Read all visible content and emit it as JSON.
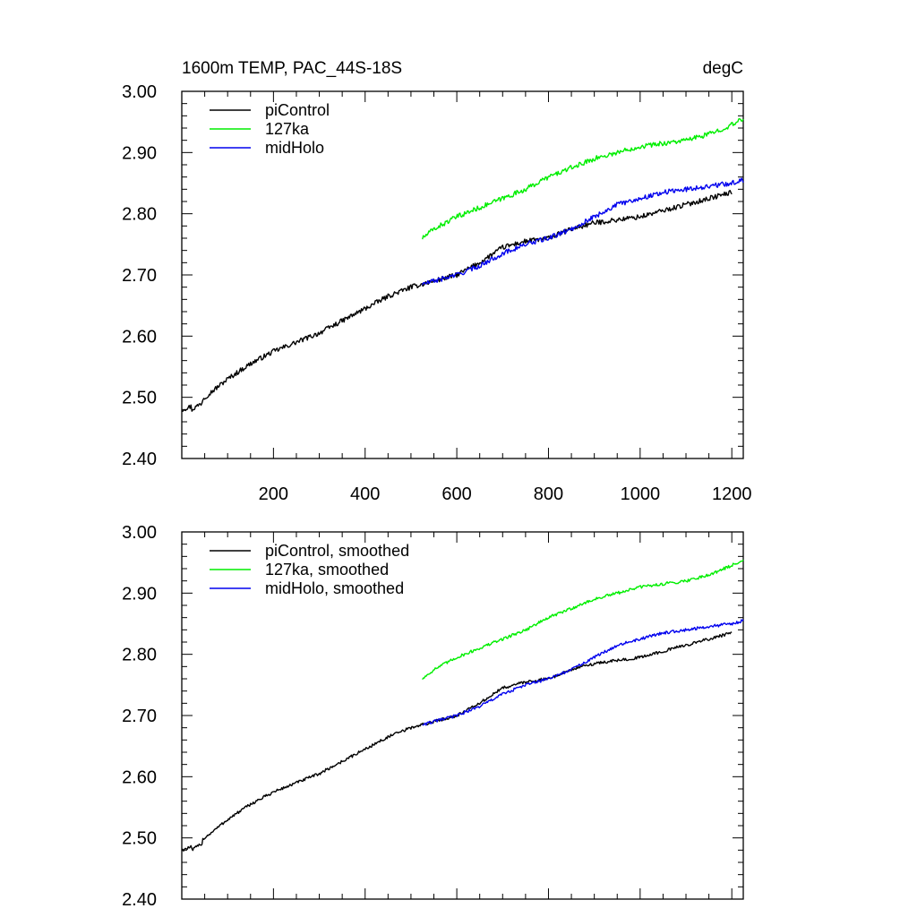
{
  "chart_data": [
    {
      "type": "line",
      "panel": "top",
      "title": "1600m TEMP, PAC_44S-18S",
      "units": "degC",
      "xlabel": "",
      "ylabel": "",
      "xlim": [
        0,
        1225
      ],
      "ylim": [
        2.4,
        3.0
      ],
      "xticks": [
        200,
        400,
        600,
        800,
        1000,
        1200
      ],
      "xtick_labels": [
        "200",
        "400",
        "600",
        "800",
        "1000",
        "1200"
      ],
      "yticks": [
        2.4,
        2.5,
        2.6,
        2.7,
        2.8,
        2.9,
        3.0
      ],
      "ytick_labels": [
        "2.40",
        "2.50",
        "2.60",
        "2.70",
        "2.80",
        "2.90",
        "3.00"
      ],
      "legend_position": "top-left",
      "series": [
        {
          "name": "piControl",
          "color": "#000000",
          "x": [
            0,
            20,
            50,
            100,
            150,
            200,
            250,
            300,
            350,
            400,
            450,
            500,
            550,
            600,
            650,
            700,
            750,
            800,
            850,
            900,
            950,
            1000,
            1050,
            1100,
            1150,
            1200
          ],
          "y": [
            2.48,
            2.485,
            2.5,
            2.53,
            2.555,
            2.575,
            2.59,
            2.605,
            2.625,
            2.645,
            2.665,
            2.68,
            2.69,
            2.7,
            2.72,
            2.745,
            2.755,
            2.76,
            2.775,
            2.785,
            2.79,
            2.795,
            2.805,
            2.815,
            2.825,
            2.835
          ]
        },
        {
          "name": "127ka",
          "color": "#00ee00",
          "x": [
            525,
            550,
            600,
            650,
            700,
            750,
            800,
            850,
            900,
            950,
            1000,
            1050,
            1100,
            1150,
            1200,
            1225
          ],
          "y": [
            2.76,
            2.775,
            2.795,
            2.81,
            2.825,
            2.84,
            2.86,
            2.875,
            2.89,
            2.9,
            2.91,
            2.915,
            2.92,
            2.93,
            2.945,
            2.955
          ]
        },
        {
          "name": "midHolo",
          "color": "#0000ee",
          "x": [
            525,
            550,
            600,
            650,
            700,
            750,
            800,
            850,
            900,
            950,
            1000,
            1050,
            1100,
            1150,
            1200,
            1225
          ],
          "y": [
            2.685,
            2.69,
            2.7,
            2.715,
            2.735,
            2.75,
            2.76,
            2.775,
            2.795,
            2.815,
            2.825,
            2.835,
            2.84,
            2.845,
            2.85,
            2.855
          ]
        }
      ]
    },
    {
      "type": "line",
      "panel": "bottom",
      "title": "",
      "xlabel": "",
      "ylabel": "",
      "xlim": [
        0,
        1225
      ],
      "ylim": [
        2.4,
        3.0
      ],
      "xticks": [
        200,
        400,
        600,
        800,
        1000,
        1200
      ],
      "xtick_labels": [],
      "yticks": [
        2.4,
        2.5,
        2.6,
        2.7,
        2.8,
        2.9,
        3.0
      ],
      "ytick_labels": [
        "2.40",
        "2.50",
        "2.60",
        "2.70",
        "2.80",
        "2.90",
        "3.00"
      ],
      "legend_position": "top-left",
      "series": [
        {
          "name": "piControl, smoothed",
          "color": "#000000",
          "x": [
            0,
            20,
            50,
            100,
            150,
            200,
            250,
            300,
            350,
            400,
            450,
            500,
            550,
            600,
            650,
            700,
            750,
            800,
            850,
            900,
            950,
            1000,
            1050,
            1100,
            1150,
            1200
          ],
          "y": [
            2.48,
            2.485,
            2.5,
            2.53,
            2.555,
            2.575,
            2.59,
            2.605,
            2.625,
            2.645,
            2.665,
            2.68,
            2.69,
            2.7,
            2.72,
            2.745,
            2.755,
            2.76,
            2.775,
            2.785,
            2.79,
            2.795,
            2.805,
            2.815,
            2.825,
            2.835
          ]
        },
        {
          "name": "127ka, smoothed",
          "color": "#00ee00",
          "x": [
            525,
            550,
            600,
            650,
            700,
            750,
            800,
            850,
            900,
            950,
            1000,
            1050,
            1100,
            1150,
            1200,
            1225
          ],
          "y": [
            2.76,
            2.775,
            2.795,
            2.81,
            2.825,
            2.84,
            2.86,
            2.875,
            2.89,
            2.9,
            2.91,
            2.915,
            2.92,
            2.93,
            2.945,
            2.955
          ]
        },
        {
          "name": "midHolo, smoothed",
          "color": "#0000ee",
          "x": [
            525,
            550,
            600,
            650,
            700,
            750,
            800,
            850,
            900,
            950,
            1000,
            1050,
            1100,
            1150,
            1200,
            1225
          ],
          "y": [
            2.685,
            2.69,
            2.7,
            2.715,
            2.735,
            2.75,
            2.76,
            2.775,
            2.795,
            2.815,
            2.825,
            2.835,
            2.84,
            2.845,
            2.85,
            2.855
          ]
        }
      ]
    }
  ]
}
